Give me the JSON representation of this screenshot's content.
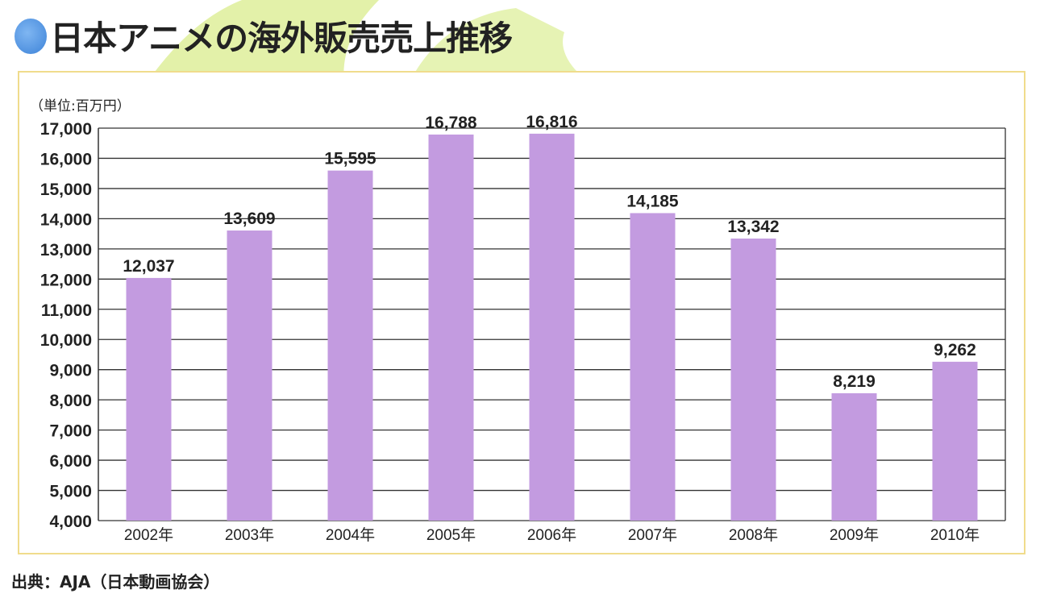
{
  "title": "日本アニメの海外販売売上推移",
  "source": "出典：AJA（日本動画協会）",
  "colors": {
    "bar": "#c39be0",
    "frame": "#f0dc8c",
    "accent_green": "#d8ec8a",
    "title_dot": "#4a8ee0"
  },
  "chart_data": {
    "type": "bar",
    "title": "日本アニメの海外販売売上推移",
    "unit_label": "（単位:百万円）",
    "categories": [
      "2002年",
      "2003年",
      "2004年",
      "2005年",
      "2006年",
      "2007年",
      "2008年",
      "2009年",
      "2010年"
    ],
    "values": [
      12037,
      13609,
      15595,
      16788,
      16816,
      14185,
      13342,
      8219,
      9262
    ],
    "value_labels": [
      "12,037",
      "13,609",
      "15,595",
      "16,788",
      "16,816",
      "14,185",
      "13,342",
      "8,219",
      "9,262"
    ],
    "ylim": [
      4000,
      17000
    ],
    "yticks": [
      4000,
      5000,
      6000,
      7000,
      8000,
      9000,
      10000,
      11000,
      12000,
      13000,
      14000,
      15000,
      16000,
      17000
    ],
    "ytick_labels": [
      "4,000",
      "5,000",
      "6,000",
      "7,000",
      "8,000",
      "9,000",
      "10,000",
      "11,000",
      "12,000",
      "13,000",
      "14,000",
      "15,000",
      "16,000",
      "17,000"
    ],
    "grid": true,
    "xlabel": "",
    "ylabel": ""
  }
}
